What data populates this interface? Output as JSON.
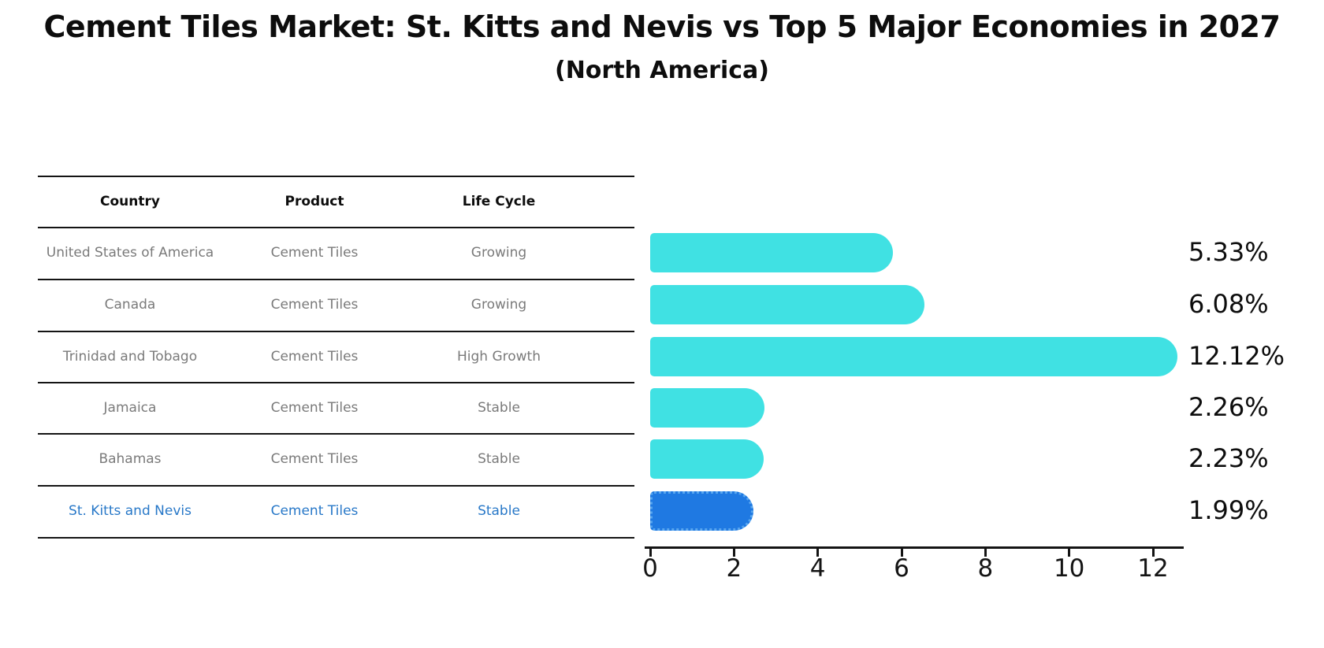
{
  "title": "Cement Tiles Market: St. Kitts and Nevis vs Top 5 Major Economies in 2027",
  "subtitle": "(North America)",
  "table": {
    "headers": [
      "Country",
      "Product",
      "Life Cycle"
    ],
    "rows": [
      {
        "country": "United States of America",
        "product": "Cement Tiles",
        "life_cycle": "Growing",
        "highlighted": false
      },
      {
        "country": "Canada",
        "product": "Cement Tiles",
        "life_cycle": "Growing",
        "highlighted": false
      },
      {
        "country": "Trinidad and Tobago",
        "product": "Cement Tiles",
        "life_cycle": "High Growth",
        "highlighted": false
      },
      {
        "country": "Jamaica",
        "product": "Cement Tiles",
        "life_cycle": "Stable",
        "highlighted": false
      },
      {
        "country": "Bahamas",
        "product": "Cement Tiles",
        "life_cycle": "Stable",
        "highlighted": false
      },
      {
        "country": "St. Kitts and Nevis",
        "product": "Cement Tiles",
        "life_cycle": "Stable",
        "highlighted": true
      }
    ]
  },
  "chart_data": {
    "type": "bar",
    "orientation": "horizontal",
    "title": "Cement Tiles Market: St. Kitts and Nevis vs Top 5 Major Economies in 2027",
    "subtitle": "(North America)",
    "categories": [
      "United States of America",
      "Canada",
      "Trinidad and Tobago",
      "Jamaica",
      "Bahamas",
      "St. Kitts and Nevis"
    ],
    "values": [
      5.33,
      6.08,
      12.12,
      2.26,
      2.23,
      1.99
    ],
    "value_labels": [
      "5.33%",
      "6.08%",
      "12.12%",
      "2.26%",
      "2.23%",
      "1.99%"
    ],
    "xticks": [
      0,
      2,
      4,
      6,
      8,
      10,
      12
    ],
    "xlim": [
      0,
      12.75
    ],
    "grid": false,
    "legend": false,
    "highlight_index": 5,
    "bar_color": "#40E1E3",
    "highlight_bar_color": "#1F79E2",
    "highlight_border_color": "#58A6EF",
    "highlight_text_color": "#2878C8",
    "axis_color": "#141414"
  }
}
